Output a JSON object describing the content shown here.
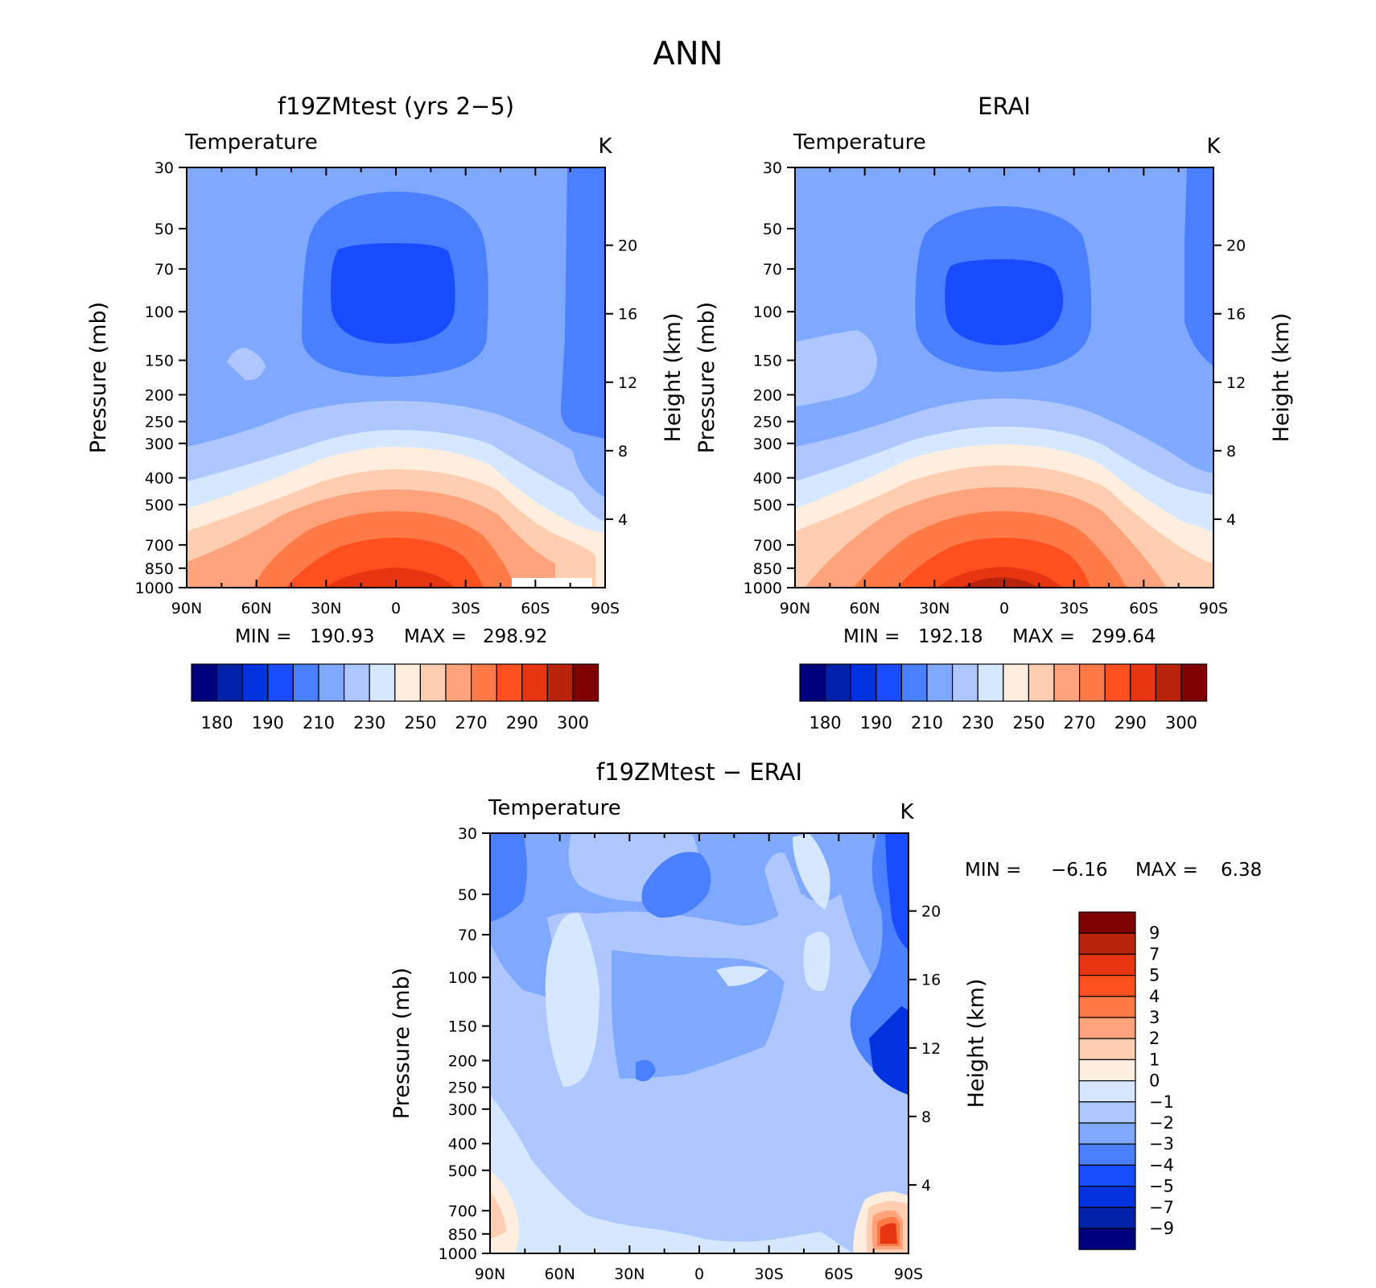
{
  "page_title": "ANN",
  "colors": [
    "#00007f",
    "#0022a8",
    "#0033dd",
    "#1a4cff",
    "#4a80ff",
    "#7fa8ff",
    "#aec8ff",
    "#d6e8ff",
    "#ffeedd",
    "#ffcdb0",
    "#ffa37c",
    "#ff7a47",
    "#ff4f1f",
    "#e63510",
    "#b8230b",
    "#7f0000"
  ],
  "chart_data": [
    {
      "type": "contour",
      "title": "f19ZMtest (yrs 2−5)",
      "left_string": "Temperature",
      "right_string": "K",
      "xlabel": "",
      "ylabel": "Pressure (mb)",
      "ylabel_right": "Height (km)",
      "x_ticks": [
        "90N",
        "60N",
        "30N",
        "0",
        "30S",
        "60S",
        "90S"
      ],
      "y_ticks": [
        "30",
        "50",
        "70",
        "100",
        "150",
        "200",
        "250",
        "300",
        "400",
        "500",
        "700",
        "850",
        "1000"
      ],
      "y_ticks_right": [
        "20",
        "16",
        "12",
        "8",
        "4"
      ],
      "y_scale": "log",
      "ylim": [
        1000,
        30
      ],
      "min_label": "MIN =",
      "min": "190.93",
      "max_label": "MAX =",
      "max": "298.92",
      "colorbar": {
        "orientation": "horizontal",
        "labels": [
          "180",
          "190",
          "210",
          "230",
          "250",
          "270",
          "290",
          "300"
        ]
      }
    },
    {
      "type": "contour",
      "title": "ERAI",
      "left_string": "Temperature",
      "right_string": "K",
      "xlabel": "",
      "ylabel": "Pressure (mb)",
      "ylabel_right": "Height (km)",
      "x_ticks": [
        "90N",
        "60N",
        "30N",
        "0",
        "30S",
        "60S",
        "90S"
      ],
      "y_ticks": [
        "30",
        "50",
        "70",
        "100",
        "150",
        "200",
        "250",
        "300",
        "400",
        "500",
        "700",
        "850",
        "1000"
      ],
      "y_ticks_right": [
        "20",
        "16",
        "12",
        "8",
        "4"
      ],
      "y_scale": "log",
      "ylim": [
        1000,
        30
      ],
      "min_label": "MIN =",
      "min": "192.18",
      "max_label": "MAX =",
      "max": "299.64",
      "colorbar": {
        "orientation": "horizontal",
        "labels": [
          "180",
          "190",
          "210",
          "230",
          "250",
          "270",
          "290",
          "300"
        ]
      }
    },
    {
      "type": "contour",
      "title": "f19ZMtest − ERAI",
      "left_string": "Temperature",
      "right_string": "K",
      "xlabel": "",
      "ylabel": "Pressure (mb)",
      "ylabel_right": "Height (km)",
      "x_ticks": [
        "90N",
        "60N",
        "30N",
        "0",
        "30S",
        "60S",
        "90S"
      ],
      "y_ticks": [
        "30",
        "50",
        "70",
        "100",
        "150",
        "200",
        "250",
        "300",
        "400",
        "500",
        "700",
        "850",
        "1000"
      ],
      "y_ticks_right": [
        "20",
        "16",
        "12",
        "8",
        "4"
      ],
      "y_scale": "log",
      "ylim": [
        1000,
        30
      ],
      "min_label": "MIN =",
      "min": "−6.16",
      "max_label": "MAX =",
      "max": "6.38",
      "colorbar": {
        "orientation": "vertical",
        "labels": [
          "9",
          "7",
          "5",
          "4",
          "3",
          "2",
          "1",
          "0",
          "−1",
          "−2",
          "−3",
          "−4",
          "−5",
          "−7",
          "−9"
        ]
      }
    }
  ]
}
